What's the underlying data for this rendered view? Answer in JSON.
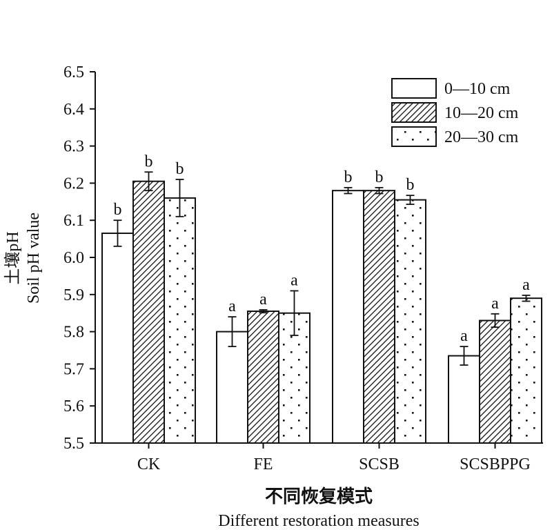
{
  "chart_data": {
    "type": "bar",
    "ylabel_cn": "土壤pH",
    "ylabel_en": "Soil pH value",
    "xlabel_cn": "不同恢复模式",
    "xlabel_en": "Different restoration measures",
    "ylim": [
      5.5,
      6.5
    ],
    "yticks": [
      5.5,
      5.6,
      5.7,
      5.8,
      5.9,
      6.0,
      6.1,
      6.2,
      6.3,
      6.4,
      6.5
    ],
    "ytick_labels": [
      "5.5",
      "5.6",
      "5.7",
      "5.8",
      "5.9",
      "6.0",
      "6.1",
      "6.2",
      "6.3",
      "6.4",
      "6.5"
    ],
    "categories": [
      "CK",
      "FE",
      "SCSB",
      "SCSBPPG"
    ],
    "legend_position": "top-right",
    "grid": false,
    "series": [
      {
        "name": "0—10 cm",
        "pattern": "white",
        "values": [
          6.065,
          5.8,
          6.18,
          5.735
        ],
        "errors": [
          0.035,
          0.04,
          0.008,
          0.025
        ],
        "labels": [
          "b",
          "a",
          "b",
          "a"
        ]
      },
      {
        "name": "10—20 cm",
        "pattern": "hatch",
        "values": [
          6.205,
          5.855,
          6.18,
          5.83
        ],
        "errors": [
          0.025,
          0.004,
          0.008,
          0.018
        ],
        "labels": [
          "b",
          "a",
          "b",
          "a"
        ]
      },
      {
        "name": "20—30 cm",
        "pattern": "dots",
        "values": [
          6.16,
          5.85,
          6.155,
          5.89
        ],
        "errors": [
          0.05,
          0.06,
          0.012,
          0.008
        ],
        "labels": [
          "b",
          "a",
          "b",
          "a"
        ]
      }
    ]
  }
}
